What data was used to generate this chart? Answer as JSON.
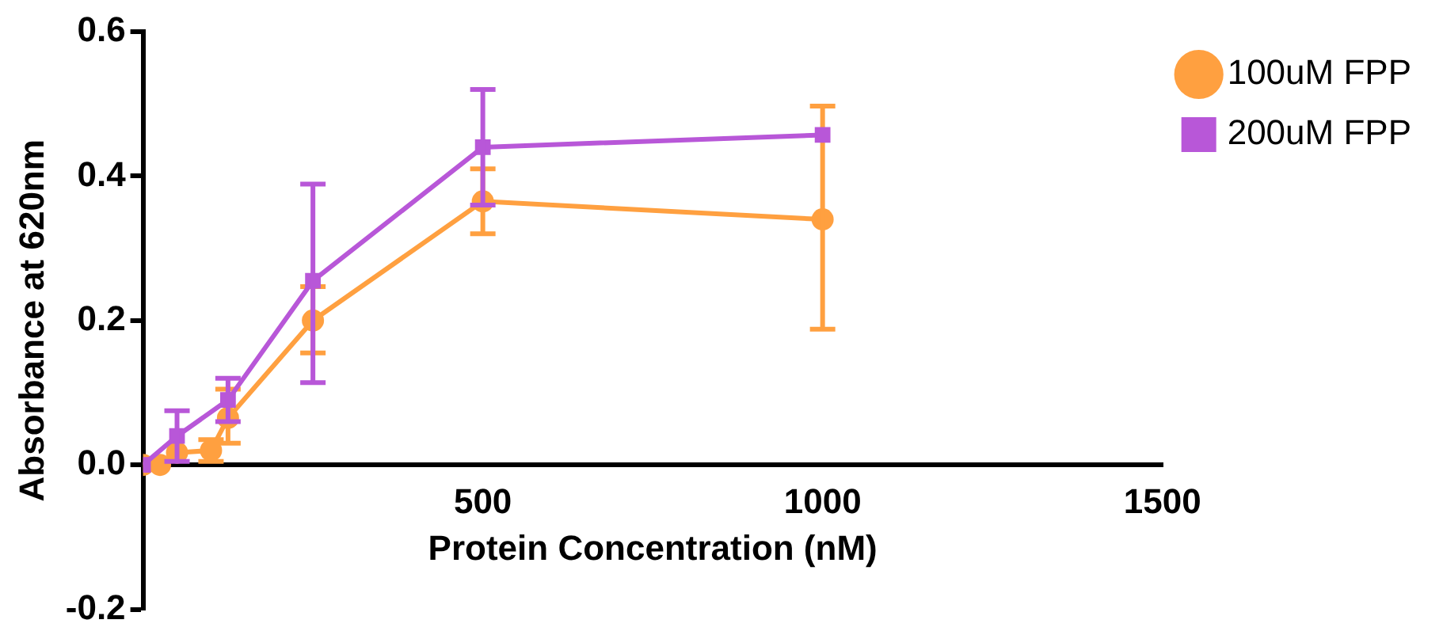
{
  "chart_data": {
    "type": "line",
    "xlabel": "Protein Concentration (nM)",
    "ylabel": "Absorbance at 620nm",
    "x": [
      0,
      25,
      50,
      100,
      125,
      250,
      500,
      1000
    ],
    "series": [
      {
        "name": "100uM FPP",
        "color": "#ffa040",
        "marker": "circle",
        "values": [
          0,
          0.0,
          0.017,
          0.02,
          0.065,
          0.2,
          0.365,
          0.34
        ],
        "errors": [
          null,
          null,
          null,
          0.015,
          [
            0.03,
            0.105
          ],
          [
            0.155,
            0.247
          ],
          [
            0.32,
            0.41
          ],
          [
            0.188,
            0.497
          ]
        ]
      },
      {
        "name": "200uM FPP",
        "color": "#b857d8",
        "marker": "square",
        "values": [
          0,
          null,
          0.04,
          null,
          0.09,
          0.255,
          0.44,
          0.457
        ],
        "errors": [
          null,
          null,
          0.035,
          null,
          0.03,
          [
            0.114,
            0.389
          ],
          [
            0.36,
            0.52
          ],
          null
        ]
      }
    ],
    "xlim": [
      0,
      1500
    ],
    "xticks": [
      500,
      1000,
      1500
    ],
    "ylim": [
      -0.2,
      0.6
    ],
    "yticks": [
      -0.2,
      {
        "value": 0,
        "label": "0.0"
      },
      0.2,
      0.4,
      0.6
    ],
    "grid": false,
    "legend": "top right",
    "line_style": "solid"
  }
}
